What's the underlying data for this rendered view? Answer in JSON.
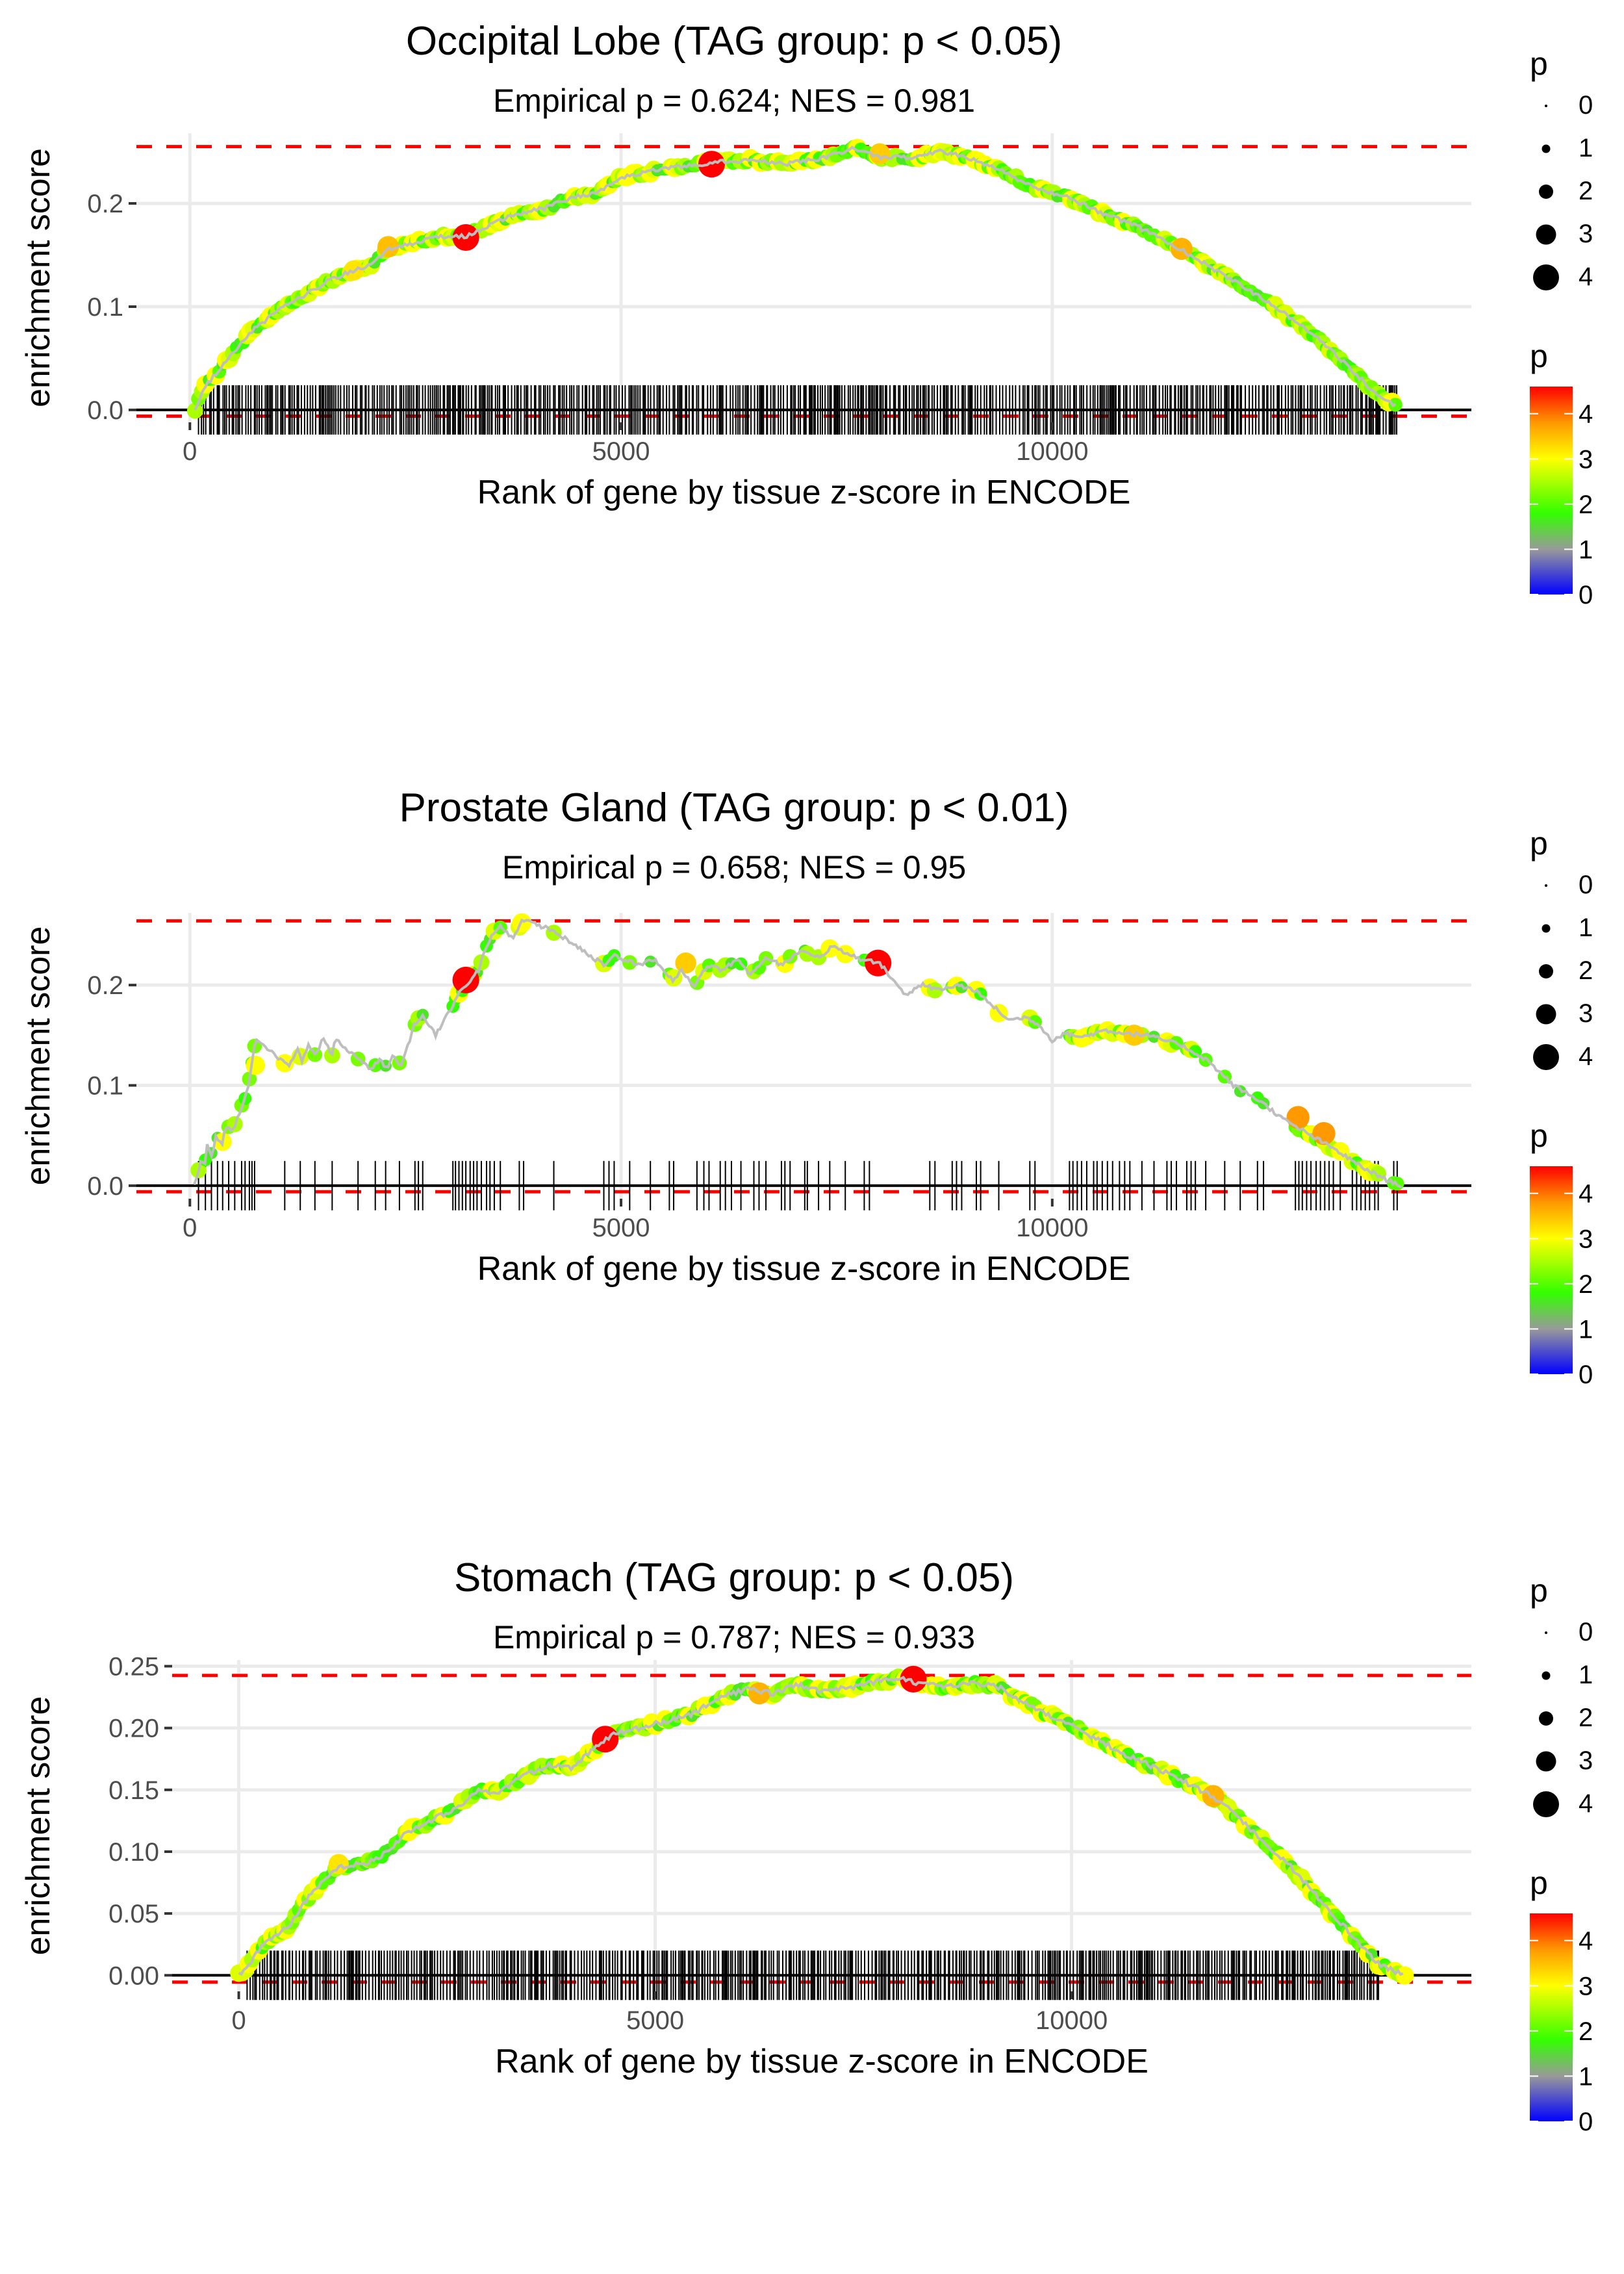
{
  "chart_data": [
    {
      "type": "line",
      "title": "Occipital Lobe (TAG group: p < 0.05)",
      "subtitle": "Empirical p = 0.624; NES = 0.981",
      "xlabel": "Rank of gene by tissue z-score in ENCODE",
      "ylabel": "enrichment score",
      "xlim": [
        -620,
        14860
      ],
      "ylim": [
        -0.012,
        0.268
      ],
      "x_ticks": [
        0,
        5000,
        10000
      ],
      "x_tick_labels": [
        "0",
        "5000",
        "10000"
      ],
      "y_ticks": [
        0.0,
        0.1,
        0.2
      ],
      "y_tick_labels": [
        "0.0",
        "0.1",
        "0.2"
      ],
      "max_es_line": 0.255,
      "min_es_line": -0.006,
      "grid": true,
      "rug": {
        "start": 100,
        "end": 14000,
        "density": "dense"
      },
      "curve": [
        [
          60,
          0.0
        ],
        [
          150,
          0.02
        ],
        [
          400,
          0.045
        ],
        [
          700,
          0.075
        ],
        [
          1000,
          0.095
        ],
        [
          1300,
          0.11
        ],
        [
          1600,
          0.125
        ],
        [
          1900,
          0.135
        ],
        [
          2100,
          0.14
        ],
        [
          2300,
          0.155
        ],
        [
          2600,
          0.162
        ],
        [
          2900,
          0.168
        ],
        [
          3200,
          0.168
        ],
        [
          3500,
          0.18
        ],
        [
          3800,
          0.19
        ],
        [
          4100,
          0.195
        ],
        [
          4400,
          0.205
        ],
        [
          4700,
          0.21
        ],
        [
          5000,
          0.225
        ],
        [
          5400,
          0.232
        ],
        [
          5800,
          0.237
        ],
        [
          6100,
          0.24
        ],
        [
          6500,
          0.242
        ],
        [
          6900,
          0.238
        ],
        [
          7300,
          0.243
        ],
        [
          7700,
          0.253
        ],
        [
          8000,
          0.245
        ],
        [
          8400,
          0.244
        ],
        [
          8700,
          0.25
        ],
        [
          9000,
          0.245
        ],
        [
          9400,
          0.232
        ],
        [
          9800,
          0.215
        ],
        [
          10200,
          0.205
        ],
        [
          10600,
          0.19
        ],
        [
          11000,
          0.177
        ],
        [
          11500,
          0.155
        ],
        [
          12000,
          0.13
        ],
        [
          12500,
          0.105
        ],
        [
          13000,
          0.075
        ],
        [
          13400,
          0.045
        ],
        [
          13700,
          0.02
        ],
        [
          14000,
          0.003
        ]
      ],
      "highlight_points": [
        {
          "x": 3200,
          "y": 0.167,
          "p": 4.6
        },
        {
          "x": 6050,
          "y": 0.238,
          "p": 4.6
        },
        {
          "x": 2300,
          "y": 0.158,
          "p": 3.5
        },
        {
          "x": 11500,
          "y": 0.156,
          "p": 3.6
        },
        {
          "x": 8000,
          "y": 0.248,
          "p": 3.4
        },
        {
          "x": 1900,
          "y": 0.135,
          "p": 3.2
        }
      ]
    },
    {
      "type": "line",
      "title": "Prostate Gland (TAG group: p < 0.01)",
      "subtitle": "Empirical p = 0.658; NES = 0.95",
      "xlabel": "Rank of gene by tissue z-score in ENCODE",
      "ylabel": "enrichment score",
      "xlim": [
        -620,
        14860
      ],
      "ylim": [
        -0.013,
        0.272
      ],
      "x_ticks": [
        0,
        5000,
        10000
      ],
      "x_tick_labels": [
        "0",
        "5000",
        "10000"
      ],
      "y_ticks": [
        0.0,
        0.1,
        0.2
      ],
      "y_tick_labels": [
        "0.0",
        "0.1",
        "0.2"
      ],
      "max_es_line": 0.264,
      "min_es_line": -0.006,
      "grid": true,
      "rug_ranks": [
        100,
        180,
        250,
        320,
        380,
        450,
        520,
        600,
        640,
        690,
        720,
        750,
        1100,
        1280,
        1450,
        1650,
        1950,
        2150,
        2270,
        2430,
        2610,
        2650,
        2700,
        3050,
        3080,
        3120,
        3160,
        3200,
        3250,
        3290,
        3330,
        3380,
        3440,
        3480,
        3530,
        3600,
        3820,
        3870,
        4220,
        4800,
        4860,
        4920,
        5100,
        5340,
        5560,
        5610,
        5880,
        5960,
        6020,
        6150,
        6210,
        6280,
        6390,
        6540,
        6600,
        6680,
        6860,
        6900,
        6960,
        7130,
        7160,
        7290,
        7420,
        7600,
        7820,
        7880,
        8580,
        8640,
        8840,
        8890,
        8950,
        9120,
        9170,
        9380,
        9740,
        9800,
        10200,
        10240,
        10290,
        10340,
        10400,
        10480,
        10520,
        10580,
        10640,
        10700,
        10780,
        10840,
        10900,
        11040,
        11180,
        11330,
        11380,
        11440,
        11560,
        11610,
        11660,
        11780,
        12000,
        12180,
        12380,
        12450,
        12820,
        12860,
        12900,
        12950,
        13000,
        13060,
        13110,
        13160,
        13210,
        13260,
        13340,
        13480,
        13530,
        13580,
        13630,
        13680,
        13740,
        13780,
        13960,
        14000
      ],
      "curve": [
        [
          50,
          0.0
        ],
        [
          90,
          0.01
        ],
        [
          120,
          0.025
        ],
        [
          170,
          0.02
        ],
        [
          200,
          0.04
        ],
        [
          260,
          0.03
        ],
        [
          300,
          0.05
        ],
        [
          370,
          0.04
        ],
        [
          420,
          0.06
        ],
        [
          500,
          0.055
        ],
        [
          560,
          0.07
        ],
        [
          630,
          0.085
        ],
        [
          680,
          0.1
        ],
        [
          710,
          0.115
        ],
        [
          730,
          0.13
        ],
        [
          760,
          0.145
        ],
        [
          1150,
          0.12
        ],
        [
          1250,
          0.135
        ],
        [
          1300,
          0.125
        ],
        [
          1380,
          0.14
        ],
        [
          1450,
          0.13
        ],
        [
          1550,
          0.147
        ],
        [
          1650,
          0.13
        ],
        [
          1680,
          0.147
        ],
        [
          2100,
          0.115
        ],
        [
          2200,
          0.127
        ],
        [
          2290,
          0.115
        ],
        [
          2350,
          0.13
        ],
        [
          2450,
          0.12
        ],
        [
          2550,
          0.145
        ],
        [
          2600,
          0.16
        ],
        [
          2700,
          0.17
        ],
        [
          2850,
          0.15
        ],
        [
          3000,
          0.173
        ],
        [
          3050,
          0.18
        ],
        [
          3100,
          0.19
        ],
        [
          3200,
          0.2
        ],
        [
          3350,
          0.215
        ],
        [
          3400,
          0.23
        ],
        [
          3500,
          0.25
        ],
        [
          3600,
          0.258
        ],
        [
          3750,
          0.245
        ],
        [
          3850,
          0.265
        ],
        [
          4200,
          0.255
        ],
        [
          4800,
          0.22
        ],
        [
          4900,
          0.23
        ],
        [
          5200,
          0.22
        ],
        [
          5400,
          0.225
        ],
        [
          5600,
          0.205
        ],
        [
          5700,
          0.215
        ],
        [
          5850,
          0.2
        ],
        [
          6000,
          0.22
        ],
        [
          6150,
          0.215
        ],
        [
          6350,
          0.225
        ],
        [
          6500,
          0.21
        ],
        [
          6700,
          0.228
        ],
        [
          6850,
          0.22
        ],
        [
          7100,
          0.235
        ],
        [
          7300,
          0.228
        ],
        [
          7450,
          0.238
        ],
        [
          7800,
          0.225
        ],
        [
          8000,
          0.222
        ],
        [
          8300,
          0.19
        ],
        [
          8500,
          0.2
        ],
        [
          8700,
          0.195
        ],
        [
          8900,
          0.2
        ],
        [
          9100,
          0.195
        ],
        [
          9500,
          0.165
        ],
        [
          9700,
          0.168
        ],
        [
          9850,
          0.16
        ],
        [
          10000,
          0.145
        ],
        [
          10150,
          0.152
        ],
        [
          10350,
          0.148
        ],
        [
          10600,
          0.155
        ],
        [
          10850,
          0.152
        ],
        [
          11100,
          0.15
        ],
        [
          11500,
          0.14
        ],
        [
          11800,
          0.125
        ],
        [
          12100,
          0.1
        ],
        [
          12400,
          0.085
        ],
        [
          12700,
          0.065
        ],
        [
          13000,
          0.05
        ],
        [
          13300,
          0.035
        ],
        [
          13600,
          0.018
        ],
        [
          13900,
          0.005
        ],
        [
          14050,
          0.0
        ]
      ],
      "highlight_points": [
        {
          "x": 3200,
          "y": 0.205,
          "p": 4.6
        },
        {
          "x": 7980,
          "y": 0.222,
          "p": 4.6
        },
        {
          "x": 5750,
          "y": 0.222,
          "p": 3.4
        },
        {
          "x": 12850,
          "y": 0.068,
          "p": 3.8
        },
        {
          "x": 13150,
          "y": 0.052,
          "p": 3.8
        },
        {
          "x": 10950,
          "y": 0.15,
          "p": 3.4
        },
        {
          "x": 3850,
          "y": 0.262,
          "p": 3.0
        },
        {
          "x": 760,
          "y": 0.12,
          "p": 3.0
        }
      ]
    },
    {
      "type": "line",
      "title": "Stomach (TAG group: p < 0.05)",
      "subtitle": "Empirical p = 0.787; NES = 0.933",
      "xlabel": "Rank of gene by tissue z-score in ENCODE",
      "ylabel": "enrichment score",
      "xlim": [
        -800,
        14800
      ],
      "ylim": [
        -0.013,
        0.255
      ],
      "x_ticks": [
        0,
        5000,
        10000
      ],
      "x_tick_labels": [
        "0",
        "5000",
        "10000"
      ],
      "y_ticks": [
        0.0,
        0.05,
        0.1,
        0.15,
        0.2,
        0.25
      ],
      "y_tick_labels": [
        "0.00",
        "0.05",
        "0.10",
        "0.15",
        "0.20",
        "0.25"
      ],
      "max_es_line": 0.2425,
      "min_es_line": -0.0055,
      "grid": true,
      "rug": {
        "start": 100,
        "end": 13700,
        "density": "dense"
      },
      "curve": [
        [
          0,
          0.0
        ],
        [
          100,
          0.005
        ],
        [
          200,
          0.018
        ],
        [
          400,
          0.03
        ],
        [
          600,
          0.04
        ],
        [
          800,
          0.06
        ],
        [
          1000,
          0.075
        ],
        [
          1200,
          0.088
        ],
        [
          1500,
          0.09
        ],
        [
          1800,
          0.1
        ],
        [
          2000,
          0.115
        ],
        [
          2300,
          0.125
        ],
        [
          2600,
          0.135
        ],
        [
          2900,
          0.15
        ],
        [
          3100,
          0.148
        ],
        [
          3400,
          0.16
        ],
        [
          3700,
          0.17
        ],
        [
          4000,
          0.168
        ],
        [
          4300,
          0.185
        ],
        [
          4500,
          0.195
        ],
        [
          4800,
          0.2
        ],
        [
          5100,
          0.205
        ],
        [
          5400,
          0.21
        ],
        [
          5800,
          0.225
        ],
        [
          6100,
          0.232
        ],
        [
          6400,
          0.228
        ],
        [
          6700,
          0.235
        ],
        [
          7000,
          0.23
        ],
        [
          7300,
          0.232
        ],
        [
          7600,
          0.237
        ],
        [
          7900,
          0.24
        ],
        [
          8200,
          0.236
        ],
        [
          8500,
          0.233
        ],
        [
          8800,
          0.236
        ],
        [
          9100,
          0.234
        ],
        [
          9400,
          0.222
        ],
        [
          9800,
          0.208
        ],
        [
          10200,
          0.195
        ],
        [
          10600,
          0.18
        ],
        [
          11000,
          0.168
        ],
        [
          11400,
          0.155
        ],
        [
          11800,
          0.14
        ],
        [
          12200,
          0.115
        ],
        [
          12600,
          0.09
        ],
        [
          13000,
          0.06
        ],
        [
          13400,
          0.03
        ],
        [
          13700,
          0.008
        ],
        [
          14000,
          0.0
        ]
      ],
      "highlight_points": [
        {
          "x": 4400,
          "y": 0.191,
          "p": 4.6
        },
        {
          "x": 8100,
          "y": 0.2395,
          "p": 4.6
        },
        {
          "x": 6250,
          "y": 0.228,
          "p": 3.6
        },
        {
          "x": 11700,
          "y": 0.145,
          "p": 3.6
        },
        {
          "x": 1200,
          "y": 0.09,
          "p": 3.2
        }
      ]
    }
  ],
  "legend": {
    "size_title": "p",
    "size_labels": [
      "0",
      "1",
      "2",
      "3",
      "4"
    ],
    "color_title": "p",
    "color_labels": [
      "4",
      "3",
      "2",
      "1",
      "0"
    ],
    "color_stops": [
      {
        "value": 0,
        "color": "#0000ff"
      },
      {
        "value": 1,
        "color": "#999999"
      },
      {
        "value": 1.8,
        "color": "#33ff00"
      },
      {
        "value": 3,
        "color": "#ffff00"
      },
      {
        "value": 3.8,
        "color": "#ff9900"
      },
      {
        "value": 4.6,
        "color": "#ff0000"
      }
    ],
    "color_max": 4.6
  },
  "colors": {
    "curve_line": "#bebebe",
    "dashed": "#ff0000",
    "zero_line": "#000000",
    "grid": "#ebebeb"
  }
}
